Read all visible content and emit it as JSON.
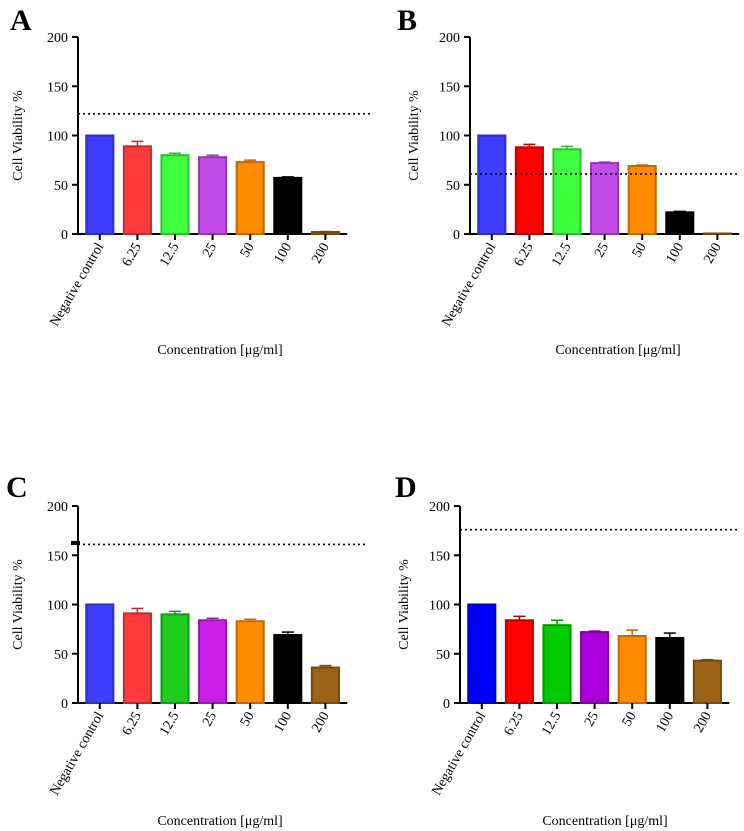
{
  "chart_data": [
    {
      "panel": "A",
      "type": "bar",
      "ylabel": "Cell Viability %",
      "xlabel": "Concentration [μg/ml]",
      "ylim": [
        0,
        200
      ],
      "yticks": [
        "0",
        "50",
        "100",
        "150",
        "200"
      ],
      "categories": [
        "Negative control",
        "6.25",
        "12.5",
        "25",
        "50",
        "100",
        "200"
      ],
      "values": [
        100,
        89,
        80,
        78,
        73,
        57,
        2
      ],
      "errors": [
        0,
        5,
        2,
        2,
        2,
        1,
        0.5
      ],
      "reference_line": 122,
      "colors": [
        "#3d3dff",
        "#ff3b3b",
        "#3dff3d",
        "#c34be8",
        "#ff8c00",
        "#000000",
        "#9a6414"
      ]
    },
    {
      "panel": "B",
      "type": "bar",
      "ylabel": "Cell Viability %",
      "xlabel": "Concentration [μg/ml]",
      "ylim": [
        0,
        200
      ],
      "yticks": [
        "0",
        "50",
        "100",
        "150",
        "200"
      ],
      "categories": [
        "Negative control",
        "6.25",
        "12.5",
        "25",
        "50",
        "100",
        "200"
      ],
      "values": [
        100,
        88,
        86,
        72,
        69,
        22,
        0
      ],
      "errors": [
        0,
        3,
        3,
        1,
        1,
        1,
        0
      ],
      "reference_line": 61,
      "colors": [
        "#3d3dff",
        "#ff0000",
        "#3dff3d",
        "#c34be8",
        "#ff8c00",
        "#000000",
        "#9a6414"
      ]
    },
    {
      "panel": "C",
      "type": "bar",
      "ylabel": "Cell Viability %",
      "xlabel": "Concentration [μg/ml]",
      "ylim": [
        0,
        200
      ],
      "yticks": [
        "0",
        "50",
        "100",
        "150",
        "200"
      ],
      "categories": [
        "Negative control",
        "6.25",
        "12.5",
        "25",
        "50",
        "100",
        "200"
      ],
      "values": [
        100,
        91,
        90,
        84,
        83,
        69,
        36
      ],
      "errors": [
        0,
        5,
        3,
        2,
        2,
        3,
        2
      ],
      "reference_line": 161,
      "axis_break_at": 163,
      "colors": [
        "#3d3dff",
        "#ff3b3b",
        "#1ecc1e",
        "#c81ee6",
        "#ff8c00",
        "#000000",
        "#9a6414"
      ]
    },
    {
      "panel": "D",
      "type": "bar",
      "ylabel": "Cell Viability %",
      "xlabel": "Concentration [μg/ml]",
      "ylim": [
        0,
        200
      ],
      "yticks": [
        "0",
        "50",
        "100",
        "150",
        "200"
      ],
      "categories": [
        "Negative control",
        "6.25",
        "12.5",
        "25",
        "50",
        "100",
        "200"
      ],
      "values": [
        100,
        84,
        79,
        72,
        68,
        66,
        43
      ],
      "errors": [
        0,
        4,
        5,
        1,
        6,
        5,
        1
      ],
      "reference_line": 176,
      "colors": [
        "#0000ff",
        "#ff0000",
        "#00cc00",
        "#aa00dd",
        "#ff8c00",
        "#000000",
        "#9a6414"
      ]
    }
  ]
}
